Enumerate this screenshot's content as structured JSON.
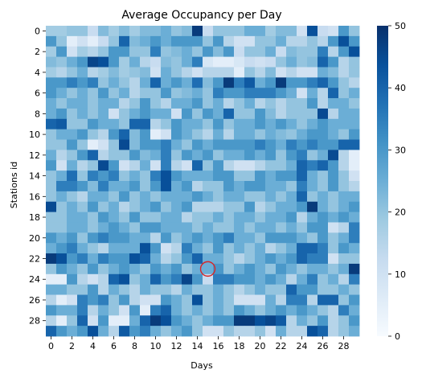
{
  "chart_data": {
    "type": "heatmap",
    "title": "Average Occupancy per Day",
    "xlabel": "Days",
    "ylabel": "Stations id",
    "x_tick_labels": [
      "0",
      "2",
      "4",
      "6",
      "8",
      "10",
      "12",
      "14",
      "16",
      "18",
      "20",
      "22",
      "24",
      "26",
      "28"
    ],
    "y_tick_labels": [
      "0",
      "2",
      "4",
      "6",
      "8",
      "10",
      "12",
      "14",
      "16",
      "18",
      "20",
      "22",
      "24",
      "26",
      "28"
    ],
    "colorbar": {
      "min": 0,
      "max": 50,
      "ticks": [
        "0",
        "10",
        "20",
        "30",
        "40",
        "50"
      ],
      "colormap": "Blues"
    },
    "n_days": 30,
    "n_stations": 30,
    "values": [
      [
        18,
        18,
        20,
        20,
        12,
        22,
        18,
        22,
        18,
        22,
        22,
        25,
        20,
        22,
        48,
        12,
        20,
        20,
        20,
        25,
        25,
        18,
        22,
        22,
        10,
        44,
        12,
        10,
        30,
        20
      ],
      [
        30,
        20,
        5,
        10,
        5,
        12,
        20,
        40,
        22,
        25,
        30,
        25,
        30,
        30,
        30,
        20,
        30,
        15,
        10,
        10,
        20,
        20,
        25,
        15,
        15,
        20,
        15,
        30,
        44,
        30
      ],
      [
        18,
        30,
        10,
        18,
        15,
        20,
        30,
        30,
        20,
        20,
        35,
        20,
        22,
        25,
        20,
        30,
        22,
        30,
        12,
        20,
        20,
        25,
        12,
        22,
        20,
        20,
        35,
        15,
        30,
        44
      ],
      [
        22,
        20,
        25,
        30,
        46,
        44,
        30,
        18,
        25,
        15,
        12,
        22,
        20,
        25,
        35,
        8,
        5,
        5,
        8,
        12,
        10,
        12,
        20,
        25,
        20,
        22,
        40,
        30,
        15,
        20
      ],
      [
        18,
        15,
        20,
        25,
        15,
        18,
        22,
        18,
        20,
        22,
        10,
        25,
        20,
        15,
        10,
        15,
        15,
        15,
        5,
        20,
        15,
        22,
        10,
        15,
        10,
        10,
        25,
        22,
        15,
        20
      ],
      [
        30,
        30,
        35,
        30,
        35,
        20,
        25,
        20,
        15,
        25,
        40,
        25,
        30,
        25,
        38,
        22,
        30,
        48,
        35,
        42,
        25,
        30,
        48,
        30,
        30,
        35,
        40,
        30,
        20,
        15
      ],
      [
        30,
        25,
        20,
        25,
        20,
        30,
        20,
        25,
        15,
        20,
        20,
        30,
        20,
        22,
        25,
        20,
        35,
        30,
        30,
        35,
        35,
        35,
        30,
        25,
        10,
        25,
        15,
        40,
        20,
        25
      ],
      [
        25,
        20,
        25,
        25,
        20,
        25,
        25,
        15,
        20,
        30,
        20,
        15,
        25,
        25,
        30,
        20,
        25,
        15,
        20,
        25,
        15,
        20,
        15,
        20,
        20,
        30,
        15,
        25,
        25,
        20
      ],
      [
        25,
        30,
        20,
        25,
        20,
        25,
        10,
        20,
        25,
        30,
        25,
        25,
        10,
        30,
        20,
        30,
        25,
        40,
        20,
        20,
        30,
        22,
        15,
        20,
        20,
        20,
        45,
        15,
        25,
        25
      ],
      [
        40,
        42,
        20,
        20,
        30,
        25,
        25,
        20,
        40,
        40,
        15,
        20,
        30,
        25,
        25,
        20,
        30,
        20,
        25,
        25,
        30,
        25,
        30,
        25,
        20,
        25,
        30,
        25,
        25,
        25
      ],
      [
        20,
        25,
        25,
        30,
        20,
        15,
        30,
        40,
        22,
        30,
        5,
        10,
        30,
        25,
        20,
        15,
        25,
        15,
        25,
        25,
        20,
        25,
        22,
        20,
        25,
        30,
        30,
        25,
        20,
        30
      ],
      [
        20,
        20,
        30,
        20,
        5,
        10,
        20,
        45,
        22,
        30,
        30,
        35,
        25,
        20,
        30,
        25,
        30,
        30,
        30,
        30,
        35,
        30,
        25,
        35,
        30,
        35,
        30,
        30,
        40,
        40
      ],
      [
        25,
        15,
        20,
        30,
        40,
        15,
        20,
        20,
        30,
        22,
        25,
        35,
        20,
        30,
        25,
        30,
        20,
        25,
        25,
        30,
        25,
        30,
        20,
        30,
        35,
        20,
        25,
        45,
        15,
        5
      ],
      [
        30,
        10,
        25,
        15,
        20,
        45,
        30,
        10,
        15,
        25,
        10,
        35,
        15,
        10,
        40,
        20,
        30,
        15,
        10,
        10,
        15,
        20,
        20,
        25,
        40,
        35,
        40,
        30,
        15,
        5
      ],
      [
        20,
        25,
        38,
        20,
        35,
        30,
        35,
        20,
        25,
        20,
        35,
        44,
        30,
        25,
        25,
        25,
        30,
        30,
        20,
        20,
        30,
        25,
        30,
        30,
        40,
        25,
        20,
        30,
        20,
        10
      ],
      [
        20,
        35,
        35,
        30,
        22,
        35,
        25,
        25,
        30,
        20,
        30,
        44,
        25,
        30,
        15,
        20,
        20,
        30,
        25,
        30,
        30,
        25,
        25,
        20,
        35,
        25,
        20,
        30,
        20,
        15
      ],
      [
        20,
        25,
        20,
        15,
        25,
        25,
        20,
        30,
        20,
        25,
        20,
        25,
        25,
        25,
        30,
        25,
        20,
        25,
        25,
        20,
        20,
        25,
        20,
        25,
        40,
        20,
        25,
        20,
        25,
        25
      ],
      [
        45,
        20,
        25,
        20,
        30,
        20,
        25,
        15,
        20,
        25,
        30,
        20,
        25,
        30,
        15,
        15,
        15,
        20,
        20,
        30,
        15,
        20,
        25,
        25,
        30,
        48,
        25,
        20,
        25,
        30
      ],
      [
        20,
        20,
        25,
        25,
        20,
        30,
        25,
        20,
        30,
        20,
        20,
        25,
        25,
        15,
        20,
        20,
        25,
        20,
        25,
        25,
        20,
        25,
        25,
        30,
        15,
        25,
        30,
        25,
        30,
        25
      ],
      [
        20,
        20,
        25,
        25,
        20,
        25,
        30,
        25,
        20,
        30,
        30,
        25,
        25,
        25,
        20,
        25,
        20,
        20,
        25,
        20,
        25,
        25,
        20,
        25,
        20,
        30,
        30,
        10,
        15,
        35
      ],
      [
        30,
        25,
        30,
        20,
        30,
        35,
        30,
        30,
        25,
        25,
        15,
        30,
        20,
        25,
        30,
        25,
        30,
        35,
        25,
        25,
        20,
        30,
        30,
        30,
        25,
        20,
        30,
        20,
        25,
        35
      ],
      [
        25,
        30,
        35,
        25,
        20,
        15,
        25,
        25,
        25,
        44,
        30,
        10,
        15,
        35,
        25,
        20,
        30,
        20,
        25,
        20,
        25,
        15,
        20,
        25,
        40,
        40,
        35,
        20,
        30,
        25
      ],
      [
        48,
        44,
        30,
        35,
        25,
        35,
        30,
        30,
        44,
        40,
        25,
        15,
        20,
        30,
        40,
        25,
        25,
        20,
        15,
        20,
        25,
        30,
        25,
        30,
        40,
        35,
        35,
        10,
        20,
        20
      ],
      [
        20,
        30,
        25,
        20,
        30,
        20,
        25,
        30,
        25,
        20,
        30,
        25,
        30,
        20,
        25,
        25,
        30,
        20,
        25,
        30,
        25,
        20,
        30,
        25,
        20,
        25,
        25,
        20,
        25,
        48
      ],
      [
        5,
        5,
        30,
        15,
        10,
        15,
        40,
        44,
        20,
        25,
        40,
        30,
        35,
        46,
        30,
        12,
        35,
        35,
        30,
        30,
        25,
        30,
        25,
        15,
        25,
        35,
        20,
        25,
        15,
        35
      ],
      [
        25,
        25,
        20,
        20,
        30,
        15,
        25,
        20,
        15,
        25,
        20,
        20,
        15,
        25,
        20,
        20,
        25,
        20,
        15,
        20,
        25,
        20,
        20,
        40,
        30,
        30,
        20,
        20,
        25,
        20
      ],
      [
        15,
        5,
        10,
        35,
        30,
        35,
        20,
        30,
        15,
        10,
        10,
        30,
        25,
        20,
        44,
        20,
        25,
        20,
        10,
        10,
        10,
        25,
        15,
        35,
        35,
        15,
        40,
        40,
        20,
        30
      ],
      [
        30,
        25,
        25,
        35,
        15,
        25,
        20,
        10,
        30,
        5,
        35,
        40,
        25,
        20,
        25,
        20,
        25,
        20,
        30,
        25,
        20,
        25,
        30,
        25,
        30,
        25,
        20,
        15,
        35,
        25
      ],
      [
        15,
        5,
        20,
        40,
        10,
        30,
        5,
        5,
        25,
        40,
        48,
        44,
        30,
        25,
        20,
        25,
        30,
        30,
        48,
        48,
        44,
        46,
        42,
        15,
        25,
        20,
        30,
        15,
        20,
        30
      ],
      [
        40,
        30,
        25,
        30,
        44,
        25,
        15,
        42,
        30,
        35,
        25,
        20,
        25,
        30,
        20,
        10,
        10,
        20,
        15,
        15,
        20,
        10,
        25,
        15,
        15,
        44,
        40,
        15,
        20,
        25
      ]
    ],
    "annotation": {
      "shape": "circle",
      "color": "#d62728",
      "day": 15,
      "station": 23
    }
  }
}
